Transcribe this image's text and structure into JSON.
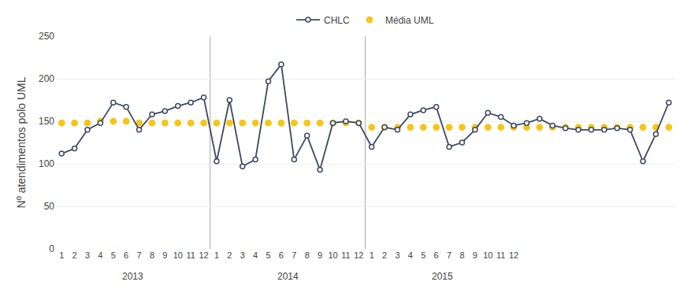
{
  "chart_data": {
    "type": "line",
    "ylabel": "Nº atendimentos polo UML",
    "categories": [
      "1",
      "2",
      "3",
      "4",
      "5",
      "6",
      "7",
      "8",
      "9",
      "10",
      "11",
      "12",
      "1",
      "2",
      "3",
      "4",
      "5",
      "6",
      "7",
      "8",
      "9",
      "10",
      "11",
      "12",
      "1",
      "2",
      "3",
      "4",
      "5",
      "6",
      "7",
      "8",
      "9",
      "10",
      "11",
      "12",
      null,
      null,
      null,
      null,
      null,
      null,
      null,
      null,
      null,
      null,
      null,
      null
    ],
    "annotations": [
      "2013",
      "2014",
      "2015"
    ],
    "series": [
      {
        "name": "CHLC",
        "color": "#3d4a63",
        "marker": "circle",
        "line_style": "solid",
        "values": [
          112,
          118,
          140,
          148,
          172,
          167,
          140,
          158,
          162,
          168,
          172,
          178,
          103,
          175,
          97,
          105,
          197,
          217,
          105,
          133,
          93,
          148,
          150,
          148,
          120,
          143,
          140,
          158,
          163,
          167,
          120,
          125,
          140,
          160,
          155,
          145,
          148,
          153,
          145,
          142,
          140,
          140,
          140,
          142,
          140,
          103,
          135,
          172
        ]
      },
      {
        "name": "Média UML",
        "color": "#f5c518",
        "marker": "circle",
        "line_style": "none",
        "values": [
          148,
          148,
          148,
          150,
          150,
          150,
          148,
          148,
          148,
          148,
          148,
          148,
          148,
          148,
          148,
          148,
          148,
          148,
          148,
          148,
          148,
          148,
          148,
          148,
          143,
          143,
          143,
          143,
          143,
          143,
          143,
          143,
          143,
          143,
          143,
          143,
          143,
          143,
          143,
          143,
          143,
          143,
          143,
          143,
          143,
          143,
          143,
          143
        ]
      }
    ],
    "ylim": [
      0,
      250
    ],
    "yticks": [
      0,
      50,
      100,
      150,
      200,
      250
    ],
    "grid": true,
    "legend": "top"
  }
}
